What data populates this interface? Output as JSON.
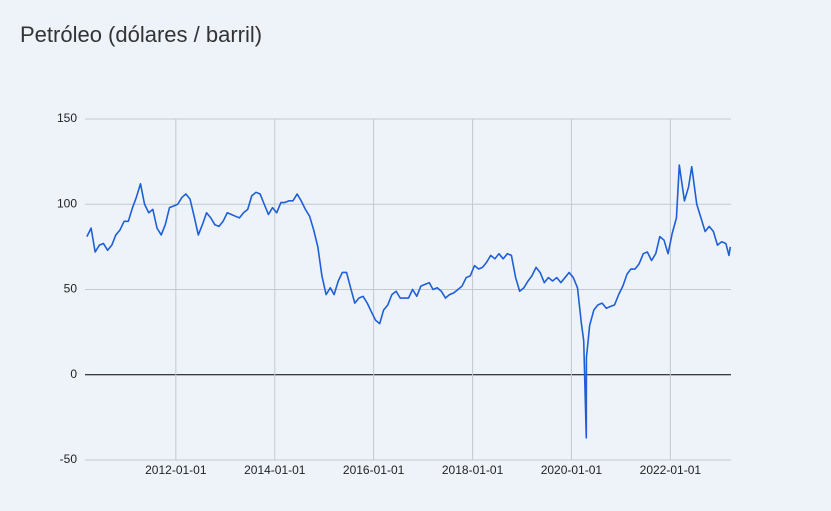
{
  "chart_data": {
    "type": "line",
    "title": "Petróleo (dólares / barril)",
    "x": [
      "2010-03-15",
      "2010-04-15",
      "2010-05-15",
      "2010-06-15",
      "2010-07-15",
      "2010-08-15",
      "2010-09-15",
      "2010-10-15",
      "2010-11-15",
      "2010-12-15",
      "2011-01-15",
      "2011-02-15",
      "2011-03-15",
      "2011-04-15",
      "2011-05-15",
      "2011-06-15",
      "2011-07-15",
      "2011-08-15",
      "2011-09-15",
      "2011-10-15",
      "2011-11-15",
      "2011-12-15",
      "2012-01-15",
      "2012-02-15",
      "2012-03-15",
      "2012-04-15",
      "2012-05-15",
      "2012-06-15",
      "2012-07-15",
      "2012-08-15",
      "2012-09-15",
      "2012-10-15",
      "2012-11-15",
      "2012-12-15",
      "2013-01-15",
      "2013-02-15",
      "2013-03-15",
      "2013-04-15",
      "2013-05-15",
      "2013-06-15",
      "2013-07-15",
      "2013-08-15",
      "2013-09-15",
      "2013-10-15",
      "2013-11-15",
      "2013-12-15",
      "2014-01-15",
      "2014-02-15",
      "2014-03-15",
      "2014-04-15",
      "2014-05-15",
      "2014-06-15",
      "2014-07-15",
      "2014-08-15",
      "2014-09-15",
      "2014-10-15",
      "2014-11-15",
      "2014-12-15",
      "2015-01-15",
      "2015-02-15",
      "2015-03-15",
      "2015-04-15",
      "2015-05-15",
      "2015-06-15",
      "2015-07-15",
      "2015-08-15",
      "2015-09-15",
      "2015-10-15",
      "2015-11-15",
      "2015-12-15",
      "2016-01-15",
      "2016-02-15",
      "2016-03-15",
      "2016-04-15",
      "2016-05-15",
      "2016-06-15",
      "2016-07-15",
      "2016-08-15",
      "2016-09-15",
      "2016-10-15",
      "2016-11-15",
      "2016-12-15",
      "2017-01-15",
      "2017-02-15",
      "2017-03-15",
      "2017-04-15",
      "2017-05-15",
      "2017-06-15",
      "2017-07-15",
      "2017-08-15",
      "2017-09-15",
      "2017-10-15",
      "2017-11-15",
      "2017-12-15",
      "2018-01-15",
      "2018-02-15",
      "2018-03-15",
      "2018-04-15",
      "2018-05-15",
      "2018-06-15",
      "2018-07-15",
      "2018-08-15",
      "2018-09-15",
      "2018-10-15",
      "2018-11-15",
      "2018-12-15",
      "2019-01-15",
      "2019-02-15",
      "2019-03-15",
      "2019-04-15",
      "2019-05-15",
      "2019-06-15",
      "2019-07-15",
      "2019-08-15",
      "2019-09-15",
      "2019-10-15",
      "2019-11-15",
      "2019-12-15",
      "2020-01-15",
      "2020-02-15",
      "2020-03-15",
      "2020-04-01",
      "2020-04-20",
      "2020-04-21",
      "2020-05-15",
      "2020-06-15",
      "2020-07-15",
      "2020-08-15",
      "2020-09-15",
      "2020-10-15",
      "2020-11-15",
      "2020-12-15",
      "2021-01-15",
      "2021-02-15",
      "2021-03-15",
      "2021-04-15",
      "2021-05-15",
      "2021-06-15",
      "2021-07-15",
      "2021-08-15",
      "2021-09-15",
      "2021-10-15",
      "2021-11-15",
      "2021-12-15",
      "2022-01-15",
      "2022-02-15",
      "2022-03-08",
      "2022-04-15",
      "2022-05-15",
      "2022-06-08",
      "2022-07-15",
      "2022-08-15",
      "2022-09-15",
      "2022-10-15",
      "2022-11-15",
      "2022-12-15",
      "2023-01-15",
      "2023-02-15",
      "2023-03-10",
      "2023-03-20"
    ],
    "series": [
      {
        "color": "#1f5fd6",
        "values": [
          81,
          86,
          72,
          76,
          77,
          73,
          76,
          82,
          85,
          90,
          90,
          98,
          104,
          112,
          100,
          95,
          97,
          86,
          82,
          88,
          98,
          99,
          100,
          104,
          106,
          103,
          93,
          82,
          88,
          95,
          92,
          88,
          87,
          90,
          95,
          94,
          93,
          92,
          95,
          97,
          105,
          107,
          106,
          100,
          94,
          98,
          95,
          101,
          101,
          102,
          102,
          106,
          102,
          97,
          93,
          85,
          75,
          58,
          47,
          51,
          47,
          55,
          60,
          60,
          51,
          42,
          45,
          46,
          42,
          37,
          32,
          30,
          38,
          41,
          47,
          49,
          45,
          45,
          45,
          50,
          46,
          52,
          53,
          54,
          50,
          51,
          49,
          45,
          47,
          48,
          50,
          52,
          57,
          58,
          64,
          62,
          63,
          66,
          70,
          68,
          71,
          68,
          71,
          70,
          57,
          49,
          51,
          55,
          58,
          63,
          60,
          54,
          57,
          55,
          57,
          54,
          57,
          60,
          57,
          51,
          30,
          20,
          -37,
          10,
          29,
          38,
          41,
          42,
          39,
          40,
          41,
          47,
          52,
          59,
          62,
          62,
          65,
          71,
          72,
          67,
          71,
          81,
          79,
          71,
          83,
          92,
          123,
          102,
          110,
          122,
          100,
          92,
          84,
          87,
          84,
          76,
          78,
          77,
          70,
          75
        ]
      }
    ],
    "xlim": [
      "2010-03-01",
      "2023-03-25"
    ],
    "xticks": [
      "2012-01-01",
      "2014-01-01",
      "2016-01-01",
      "2018-01-01",
      "2020-01-01",
      "2022-01-01"
    ],
    "ylim": [
      -50,
      150
    ],
    "yticks": [
      -50,
      0,
      50,
      100,
      150
    ],
    "grid": true
  }
}
